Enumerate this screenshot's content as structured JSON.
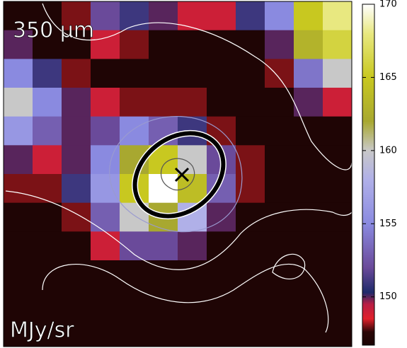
{
  "chart_data": {
    "type": "heatmap",
    "title": "350 μm",
    "colorbar_label": "MJy/sr",
    "z": [
      [
        147,
        147,
        148,
        152,
        151,
        150,
        149,
        149,
        151,
        155,
        165,
        168
      ],
      [
        150,
        147,
        147,
        149,
        148,
        147,
        147,
        147,
        147,
        150,
        163,
        166
      ],
      [
        155,
        151,
        148,
        147,
        147,
        147,
        147,
        147,
        147,
        148,
        154,
        160
      ],
      [
        160,
        155,
        150,
        149,
        148,
        148,
        148,
        147,
        147,
        147,
        150,
        149
      ],
      [
        156,
        153,
        150,
        152,
        155,
        153,
        151,
        148,
        147,
        147,
        147,
        147
      ],
      [
        150,
        149,
        150,
        155,
        162,
        165,
        160,
        152,
        148,
        147,
        147,
        147
      ],
      [
        148,
        148,
        151,
        156,
        165,
        170,
        164,
        153,
        148,
        147,
        147,
        147
      ],
      [
        147,
        147,
        148,
        153,
        160,
        162,
        158,
        150,
        147,
        147,
        147,
        147
      ],
      [
        147,
        147,
        147,
        149,
        152,
        152,
        150,
        147,
        147,
        147,
        147,
        147
      ],
      [
        147,
        147,
        147,
        147,
        147,
        147,
        147,
        147,
        147,
        147,
        147,
        147
      ],
      [
        147,
        147,
        147,
        147,
        147,
        147,
        147,
        147,
        147,
        147,
        147,
        147
      ],
      [
        147,
        147,
        147,
        147,
        147,
        147,
        147,
        147,
        147,
        147,
        147,
        147
      ]
    ],
    "zlim": [
      146.7,
      170
    ],
    "zticks": [
      150,
      155,
      160,
      165,
      170
    ],
    "colorscale": [
      [
        146.7,
        "#1a0404"
      ],
      [
        147.6,
        "#2a0606"
      ],
      [
        148.5,
        "#e0202a"
      ],
      [
        149.5,
        "#b81e44"
      ],
      [
        150.3,
        "#1e2a6a"
      ],
      [
        152,
        "#6a4a9a"
      ],
      [
        155,
        "#8a8ae0"
      ],
      [
        158,
        "#b0b0e8"
      ],
      [
        160,
        "#c8c8c8"
      ],
      [
        162,
        "#a8a830"
      ],
      [
        165,
        "#c8c820"
      ],
      [
        168,
        "#e8e880"
      ],
      [
        170,
        "#ffffff"
      ]
    ]
  }
}
